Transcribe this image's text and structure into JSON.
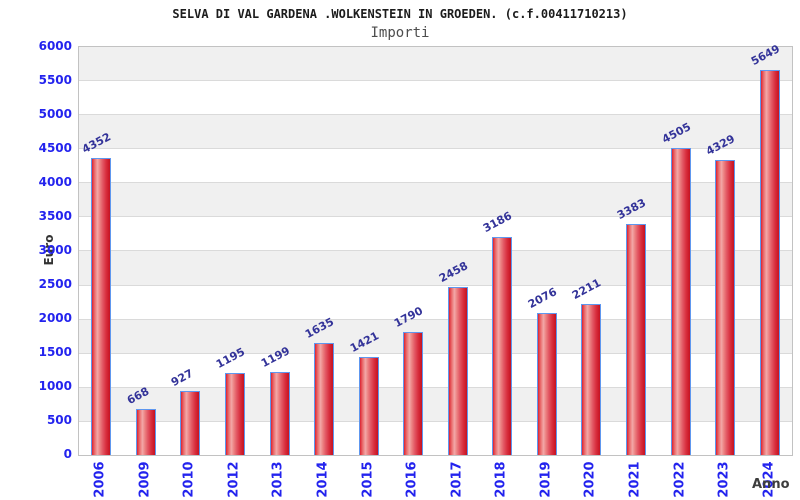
{
  "header": {
    "title": "SELVA DI VAL GARDENA .WOLKENSTEIN IN GROEDEN. (c.f.00411710213)",
    "subtitle": "Importi"
  },
  "chart_data": {
    "type": "bar",
    "title": "SELVA DI VAL GARDENA .WOLKENSTEIN IN GROEDEN. (c.f.00411710213)",
    "subtitle": "Importi",
    "xlabel": "Anno",
    "ylabel": "Euro",
    "categories": [
      "2006",
      "2009",
      "2010",
      "2012",
      "2013",
      "2014",
      "2015",
      "2016",
      "2017",
      "2018",
      "2019",
      "2020",
      "2021",
      "2022",
      "2023",
      "2024"
    ],
    "values": [
      4352,
      668,
      927,
      1195,
      1199,
      1635,
      1421,
      1790,
      2458,
      3186,
      2076,
      2211,
      3383,
      4505,
      4329,
      5649
    ],
    "ylim": [
      0,
      6000
    ],
    "ytick_step": 500,
    "grid": true,
    "legend_position": "none",
    "colors": {
      "bar_fill": "#dd2231",
      "bar_highlight": "#f3a8a8",
      "bar_border": "#5e97ef",
      "tick_label": "#2323ee",
      "value_label": "#333399",
      "band_gray": "#f0f0f0",
      "band_white": "#ffffff",
      "gridline": "#dadada",
      "plot_border": "#c2c2c2",
      "title": "#1c1c1c",
      "subtitle": "#4d4d4d",
      "axis_title": "#333333"
    }
  }
}
